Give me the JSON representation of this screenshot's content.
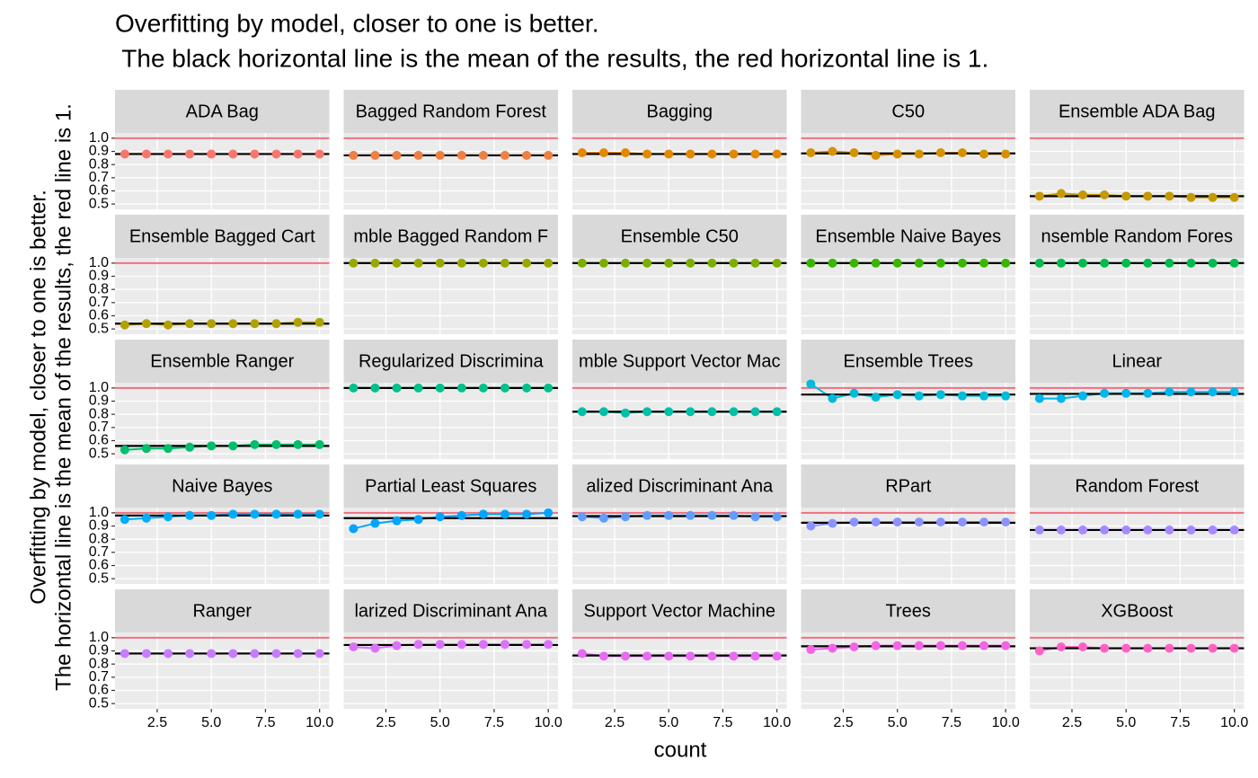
{
  "chart_data": {
    "type": "line",
    "title": [
      "Overfitting by model, closer to one is better.",
      " The black horizontal line is the mean of the results, the red horizontal line is 1."
    ],
    "x_label": "count",
    "y_label": [
      "Overfitting by model, closer to one is better.",
      "The horizontal line is the mean of the results, the red line is 1."
    ],
    "x": [
      1,
      2,
      3,
      4,
      5,
      6,
      7,
      8,
      9,
      10
    ],
    "xlim": [
      0.55,
      10.45
    ],
    "xticks": [
      {
        "value": 2.5,
        "label": "2.5"
      },
      {
        "value": 5,
        "label": "5.0"
      },
      {
        "value": 7.5,
        "label": "7.5"
      },
      {
        "value": 10,
        "label": "10.0"
      }
    ],
    "ylim": [
      0.46,
      1.04
    ],
    "yticks": [
      0.5,
      0.6,
      0.7,
      0.8,
      0.9,
      {
        "value": 1,
        "label": "1.0"
      }
    ],
    "grid": true,
    "reference_line": 1,
    "reference_color": "#F07080",
    "mean_color": "#000000",
    "panels": [
      {
        "name": "ADA Bag",
        "color": "#F8766D",
        "values": [
          0.88,
          0.88,
          0.88,
          0.88,
          0.88,
          0.88,
          0.88,
          0.88,
          0.88,
          0.88
        ],
        "mean": 0.88
      },
      {
        "name": "Bagged Random Forest",
        "color": "#EE8044",
        "values": [
          0.87,
          0.87,
          0.87,
          0.87,
          0.87,
          0.87,
          0.87,
          0.87,
          0.87,
          0.87
        ],
        "mean": 0.87
      },
      {
        "name": "Bagging",
        "color": "#E38900",
        "values": [
          0.89,
          0.89,
          0.89,
          0.88,
          0.88,
          0.88,
          0.88,
          0.88,
          0.88,
          0.88
        ],
        "mean": 0.88
      },
      {
        "name": "C50",
        "color": "#D59100",
        "values": [
          0.89,
          0.9,
          0.89,
          0.87,
          0.88,
          0.88,
          0.89,
          0.89,
          0.88,
          0.88
        ],
        "mean": 0.885
      },
      {
        "name": "Ensemble ADA Bag",
        "color": "#C49A00",
        "values": [
          0.56,
          0.58,
          0.57,
          0.57,
          0.56,
          0.56,
          0.56,
          0.55,
          0.55,
          0.55
        ],
        "mean": 0.56
      },
      {
        "name": "Ensemble Bagged Cart",
        "color": "#B0A100",
        "values": [
          0.53,
          0.54,
          0.53,
          0.54,
          0.54,
          0.54,
          0.54,
          0.54,
          0.55,
          0.55
        ],
        "mean": 0.54
      },
      {
        "name": "mble Bagged Random F",
        "color": "#99A800",
        "values": [
          1,
          1,
          1,
          1,
          1,
          1,
          1,
          1,
          1,
          1
        ],
        "mean": 1
      },
      {
        "name": "Ensemble C50",
        "color": "#7CAE00",
        "values": [
          1,
          1,
          1,
          1,
          1,
          1,
          1,
          1,
          1,
          1
        ],
        "mean": 1
      },
      {
        "name": "Ensemble Naive Bayes",
        "color": "#39B600",
        "values": [
          1,
          1,
          1,
          1,
          1,
          1,
          1,
          1,
          1,
          1
        ],
        "mean": 1
      },
      {
        "name": "nsemble Random Fores",
        "color": "#00BB4E",
        "values": [
          1,
          1,
          1,
          1,
          1,
          1,
          1,
          1,
          1,
          1
        ],
        "mean": 1
      },
      {
        "name": "Ensemble Ranger",
        "color": "#00BE6C",
        "values": [
          0.53,
          0.54,
          0.54,
          0.55,
          0.56,
          0.56,
          0.57,
          0.57,
          0.57,
          0.57
        ],
        "mean": 0.56
      },
      {
        "name": "Regularized Discrimina",
        "color": "#00C08B",
        "values": [
          1,
          1,
          1,
          1,
          1,
          1,
          1,
          1,
          1,
          1
        ],
        "mean": 1
      },
      {
        "name": "mble Support Vector Mac",
        "color": "#00C0A7",
        "values": [
          0.82,
          0.82,
          0.81,
          0.82,
          0.82,
          0.82,
          0.82,
          0.82,
          0.82,
          0.82
        ],
        "mean": 0.82
      },
      {
        "name": "Ensemble Trees",
        "color": "#00BCD8",
        "values": [
          1.03,
          0.92,
          0.96,
          0.93,
          0.95,
          0.94,
          0.95,
          0.94,
          0.94,
          0.94
        ],
        "mean": 0.95
      },
      {
        "name": "Linear",
        "color": "#00B6EB",
        "values": [
          0.92,
          0.92,
          0.94,
          0.96,
          0.96,
          0.96,
          0.97,
          0.97,
          0.97,
          0.97
        ],
        "mean": 0.955
      },
      {
        "name": "Naive Bayes",
        "color": "#00ADFA",
        "values": [
          0.95,
          0.96,
          0.97,
          0.98,
          0.98,
          0.99,
          0.99,
          0.99,
          0.99,
          0.99
        ],
        "mean": 0.98
      },
      {
        "name": "Partial Least Squares",
        "color": "#00A5FF",
        "values": [
          0.88,
          0.92,
          0.94,
          0.95,
          0.97,
          0.98,
          0.99,
          0.99,
          0.99,
          1
        ],
        "mean": 0.96
      },
      {
        "name": "alized Discriminant Ana",
        "color": "#619CFF",
        "values": [
          0.97,
          0.96,
          0.97,
          0.98,
          0.98,
          0.98,
          0.98,
          0.98,
          0.97,
          0.97
        ],
        "mean": 0.975
      },
      {
        "name": "RPart",
        "color": "#8B93FF",
        "values": [
          0.9,
          0.92,
          0.93,
          0.93,
          0.93,
          0.93,
          0.93,
          0.93,
          0.93,
          0.93
        ],
        "mean": 0.925
      },
      {
        "name": "Random Forest",
        "color": "#A58AFF",
        "values": [
          0.87,
          0.87,
          0.87,
          0.87,
          0.87,
          0.87,
          0.87,
          0.87,
          0.87,
          0.87
        ],
        "mean": 0.87
      },
      {
        "name": "Ranger",
        "color": "#C77CFF",
        "values": [
          0.88,
          0.88,
          0.88,
          0.88,
          0.88,
          0.88,
          0.88,
          0.88,
          0.88,
          0.88
        ],
        "mean": 0.88
      },
      {
        "name": "larized Discriminant Ana",
        "color": "#DB72FB",
        "values": [
          0.93,
          0.92,
          0.94,
          0.95,
          0.95,
          0.95,
          0.95,
          0.95,
          0.95,
          0.95
        ],
        "mean": 0.945
      },
      {
        "name": "Support Vector Machine",
        "color": "#E76BF3",
        "values": [
          0.88,
          0.86,
          0.86,
          0.86,
          0.86,
          0.86,
          0.86,
          0.86,
          0.86,
          0.86
        ],
        "mean": 0.865
      },
      {
        "name": "Trees",
        "color": "#F365E6",
        "values": [
          0.91,
          0.92,
          0.93,
          0.94,
          0.94,
          0.94,
          0.94,
          0.94,
          0.94,
          0.94
        ],
        "mean": 0.935
      },
      {
        "name": "XGBoost",
        "color": "#FF61C3",
        "values": [
          0.9,
          0.93,
          0.93,
          0.92,
          0.92,
          0.92,
          0.92,
          0.92,
          0.92,
          0.92
        ],
        "mean": 0.92
      }
    ]
  }
}
